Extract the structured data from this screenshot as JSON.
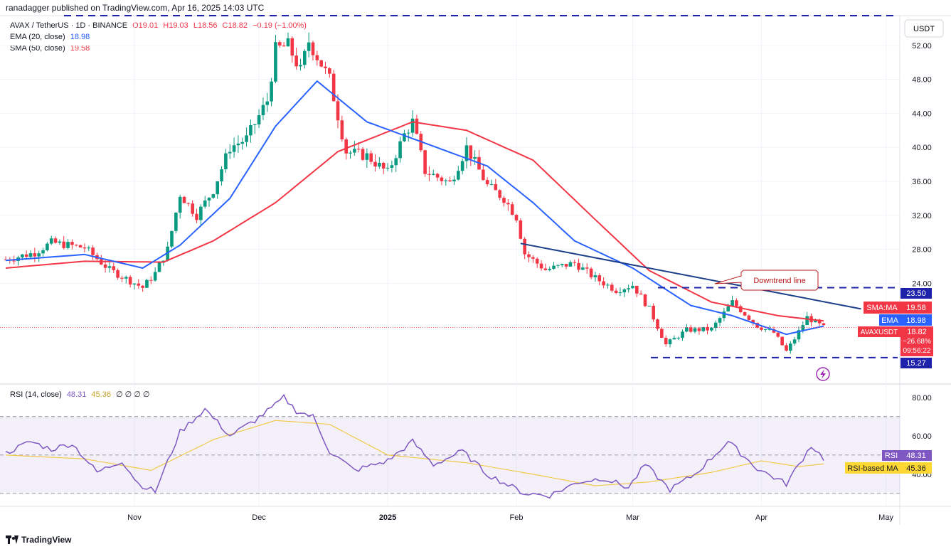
{
  "header": {
    "publisher_line": "ranadagger published on TradingView.com, Apr 16, 2025 14:03 UTC"
  },
  "symbol_legend": {
    "symbol": "AVAX / TetherUS · 1D · BINANCE",
    "open": "O19.01",
    "high": "H19.03",
    "low": "L18.56",
    "close": "C18.82",
    "change": "−0.19 (−1.00%)"
  },
  "ema_legend": {
    "label": "EMA (20, close)",
    "value": "18.98"
  },
  "sma_legend": {
    "label": "SMA (50, close)",
    "value": "19.58"
  },
  "rsi_legend": {
    "label": "RSI (14, close)",
    "v1": "48.31",
    "v2": "45.36",
    "extra": "∅ ∅ ∅ ∅"
  },
  "price_axis": {
    "currency": "USDT",
    "ticks": [
      "52.00",
      "48.00",
      "44.00",
      "40.00",
      "36.00",
      "32.00",
      "28.00",
      "24.00"
    ]
  },
  "rsi_axis": {
    "ticks": [
      "80.00",
      "60.00",
      "40.00"
    ]
  },
  "time_axis": {
    "labels": [
      "Nov",
      "Dec",
      "2025",
      "Feb",
      "Mar",
      "Apr",
      "May"
    ]
  },
  "price_labels": {
    "resistance": "23.50",
    "sma": {
      "name": "SMA:MA",
      "value": "19.58"
    },
    "ema": {
      "name": "EMA",
      "value": "18.98"
    },
    "symbol": {
      "name": "AVAXUSDT",
      "value": "18.82",
      "change": "−26.68%",
      "countdown": "09:56:22"
    },
    "support": "15.27"
  },
  "rsi_labels": {
    "rsi": {
      "name": "RSI",
      "value": "48.31"
    },
    "rsi_ma": {
      "name": "RSI-based MA",
      "value": "45.36"
    }
  },
  "annotation": {
    "text": "Downtrend line"
  },
  "footer": {
    "brand": "TradingView"
  },
  "colors": {
    "up": "#089981",
    "down": "#f23645",
    "ema": "#2962ff",
    "sma": "#f23645",
    "rsi": "#7e57c2",
    "rsi_ma": "#f2c94c",
    "level": "#1e22aa",
    "trend": "#1c3f8a"
  },
  "chart_data": {
    "type": "candlestick",
    "title": "AVAX / TetherUS · 1D · BINANCE",
    "x_range": [
      "2024-10-01",
      "2025-04-16"
    ],
    "y_range": [
      14,
      56
    ],
    "levels": {
      "resistance": 23.5,
      "support": 15.27,
      "top": 55.5
    },
    "trendline": {
      "from": {
        "x": "2025-02-02",
        "y": 28.7
      },
      "to": {
        "x": "2025-04-25",
        "y": 21.0
      }
    },
    "price_path": [
      [
        "2024-10-01",
        26.8
      ],
      [
        "2024-10-08",
        27.6
      ],
      [
        "2024-10-12",
        28.8
      ],
      [
        "2024-10-20",
        28.2
      ],
      [
        "2024-10-26",
        25.6
      ],
      [
        "2024-11-03",
        23.5
      ],
      [
        "2024-11-06",
        25.2
      ],
      [
        "2024-11-09",
        28.0
      ],
      [
        "2024-11-12",
        34.5
      ],
      [
        "2024-11-16",
        32.0
      ],
      [
        "2024-11-20",
        35.0
      ],
      [
        "2024-11-24",
        40.0
      ],
      [
        "2024-11-28",
        41.0
      ],
      [
        "2024-12-03",
        45.5
      ],
      [
        "2024-12-05",
        51.5
      ],
      [
        "2024-12-08",
        52.0
      ],
      [
        "2024-12-11",
        49.0
      ],
      [
        "2024-12-13",
        52.5
      ],
      [
        "2024-12-18",
        48.0
      ],
      [
        "2024-12-22",
        39.5
      ],
      [
        "2024-12-27",
        39.0
      ],
      [
        "2025-01-01",
        37.0
      ],
      [
        "2025-01-05",
        41.5
      ],
      [
        "2025-01-07",
        43.0
      ],
      [
        "2025-01-10",
        37.2
      ],
      [
        "2025-01-16",
        35.8
      ],
      [
        "2025-01-20",
        40.0
      ],
      [
        "2025-01-25",
        35.5
      ],
      [
        "2025-01-29",
        34.0
      ],
      [
        "2025-02-01",
        31.8
      ],
      [
        "2025-02-03",
        27.5
      ],
      [
        "2025-02-08",
        25.6
      ],
      [
        "2025-02-15",
        26.4
      ],
      [
        "2025-02-20",
        24.6
      ],
      [
        "2025-02-25",
        23.2
      ],
      [
        "2025-03-01",
        23.8
      ],
      [
        "2025-03-05",
        21.0
      ],
      [
        "2025-03-09",
        16.8
      ],
      [
        "2025-03-14",
        18.5
      ],
      [
        "2025-03-20",
        18.6
      ],
      [
        "2025-03-25",
        21.8
      ],
      [
        "2025-03-31",
        19.0
      ],
      [
        "2025-04-04",
        18.2
      ],
      [
        "2025-04-07",
        16.0
      ],
      [
        "2025-04-09",
        17.5
      ],
      [
        "2025-04-12",
        20.0
      ],
      [
        "2025-04-16",
        18.82
      ]
    ],
    "ema_path": [
      [
        "2024-10-01",
        26.7
      ],
      [
        "2024-10-20",
        27.4
      ],
      [
        "2024-11-03",
        25.8
      ],
      [
        "2024-11-12",
        28.5
      ],
      [
        "2024-11-24",
        34.0
      ],
      [
        "2024-12-05",
        42.5
      ],
      [
        "2024-12-15",
        47.8
      ],
      [
        "2024-12-27",
        43.0
      ],
      [
        "2025-01-10",
        40.5
      ],
      [
        "2025-01-25",
        37.8
      ],
      [
        "2025-02-05",
        33.5
      ],
      [
        "2025-02-15",
        29.0
      ],
      [
        "2025-03-01",
        25.8
      ],
      [
        "2025-03-15",
        21.4
      ],
      [
        "2025-03-25",
        20.2
      ],
      [
        "2025-04-07",
        18.0
      ],
      [
        "2025-04-16",
        18.98
      ]
    ],
    "sma_path": [
      [
        "2024-10-01",
        25.8
      ],
      [
        "2024-10-20",
        26.6
      ],
      [
        "2024-11-08",
        26.5
      ],
      [
        "2024-11-20",
        29.0
      ],
      [
        "2024-12-05",
        33.5
      ],
      [
        "2024-12-20",
        39.5
      ],
      [
        "2025-01-07",
        43.0
      ],
      [
        "2025-01-20",
        42.0
      ],
      [
        "2025-02-05",
        38.5
      ],
      [
        "2025-02-20",
        31.5
      ],
      [
        "2025-03-05",
        25.5
      ],
      [
        "2025-03-20",
        21.8
      ],
      [
        "2025-04-05",
        20.2
      ],
      [
        "2025-04-16",
        19.58
      ]
    ],
    "rsi": {
      "label": "RSI (14, close)",
      "y_range": [
        27,
        84
      ],
      "bands": [
        30,
        50,
        70
      ],
      "path": [
        [
          "2024-10-01",
          51
        ],
        [
          "2024-10-07",
          57
        ],
        [
          "2024-10-12",
          53
        ],
        [
          "2024-10-17",
          56
        ],
        [
          "2024-10-23",
          41
        ],
        [
          "2024-10-29",
          47
        ],
        [
          "2024-11-02",
          35
        ],
        [
          "2024-11-06",
          31
        ],
        [
          "2024-11-12",
          62
        ],
        [
          "2024-11-18",
          74
        ],
        [
          "2024-11-24",
          60
        ],
        [
          "2024-11-30",
          68
        ],
        [
          "2024-12-05",
          76
        ],
        [
          "2024-12-07",
          80
        ],
        [
          "2024-12-10",
          73
        ],
        [
          "2024-12-14",
          70
        ],
        [
          "2024-12-18",
          52
        ],
        [
          "2024-12-24",
          42
        ],
        [
          "2025-01-01",
          47
        ],
        [
          "2025-01-07",
          57
        ],
        [
          "2025-01-12",
          45
        ],
        [
          "2025-01-19",
          52
        ],
        [
          "2025-01-25",
          40
        ],
        [
          "2025-02-03",
          30
        ],
        [
          "2025-02-09",
          29
        ],
        [
          "2025-02-16",
          36
        ],
        [
          "2025-02-22",
          38
        ],
        [
          "2025-02-28",
          33
        ],
        [
          "2025-03-04",
          45
        ],
        [
          "2025-03-10",
          32
        ],
        [
          "2025-03-16",
          40
        ],
        [
          "2025-03-24",
          57
        ],
        [
          "2025-03-31",
          43
        ],
        [
          "2025-04-07",
          35
        ],
        [
          "2025-04-13",
          55
        ],
        [
          "2025-04-16",
          48.31
        ]
      ],
      "ma_path": [
        [
          "2024-10-01",
          50
        ],
        [
          "2024-10-20",
          48
        ],
        [
          "2024-11-05",
          42
        ],
        [
          "2024-11-20",
          58
        ],
        [
          "2024-12-05",
          68
        ],
        [
          "2024-12-18",
          66
        ],
        [
          "2025-01-01",
          50
        ],
        [
          "2025-01-20",
          46
        ],
        [
          "2025-02-05",
          40
        ],
        [
          "2025-02-20",
          34
        ],
        [
          "2025-03-05",
          36
        ],
        [
          "2025-03-20",
          41
        ],
        [
          "2025-04-01",
          47
        ],
        [
          "2025-04-10",
          44
        ],
        [
          "2025-04-16",
          45.36
        ]
      ]
    }
  }
}
